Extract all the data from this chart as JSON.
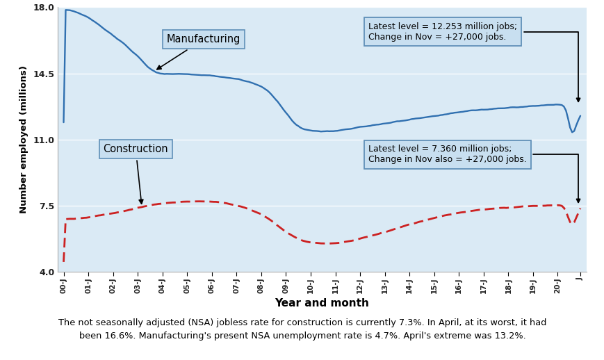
{
  "xlabel": "Year and month",
  "ylabel": "Number employed (millions)",
  "ylim": [
    4.0,
    18.0
  ],
  "yticks": [
    4.0,
    7.5,
    11.0,
    14.5,
    18.0
  ],
  "plot_bg": "#daeaf5",
  "footer_bg": "#fcdcba",
  "footer_border": "#d4a070",
  "footer_text_line1": "The not seasonally adjusted (NSA) jobless rate for construction is currently 7.3%. In April, at its worst, it had",
  "footer_text_line2": "been 16.6%. Manufacturing's present NSA unemployment rate is 4.7%. April's extreme was 13.2%.",
  "mfg_annotation": "Latest level = 12.253 million jobs;\nChange in Nov = +27,000 jobs.",
  "con_annotation": "Latest level = 7.360 million jobs;\nChange in Nov also = +27,000 jobs.",
  "mfg_label": "Manufacturing",
  "con_label": "Construction",
  "mfg_color": "#3070b0",
  "con_color": "#cc2222",
  "annotation_bg": "#c8dff0",
  "annotation_border": "#6090b8",
  "x_tick_labels": [
    "00-J",
    "01-J",
    "02-J",
    "03-J",
    "04-J",
    "05-J",
    "06-J",
    "07-J",
    "08-J",
    "09-J",
    "10-J",
    "11-J",
    "12-J",
    "13-J",
    "14-J",
    "15-J",
    "16-J",
    "17-J",
    "18-J",
    "19-J",
    "20-J",
    "J"
  ],
  "mfg_keypoints": [
    [
      0,
      17.85
    ],
    [
      3,
      17.82
    ],
    [
      6,
      17.75
    ],
    [
      9,
      17.6
    ],
    [
      12,
      17.45
    ],
    [
      18,
      17.0
    ],
    [
      24,
      16.5
    ],
    [
      30,
      16.0
    ],
    [
      36,
      15.4
    ],
    [
      40,
      14.95
    ],
    [
      42,
      14.75
    ],
    [
      44,
      14.6
    ],
    [
      46,
      14.52
    ],
    [
      48,
      14.48
    ],
    [
      54,
      14.47
    ],
    [
      60,
      14.47
    ],
    [
      66,
      14.42
    ],
    [
      72,
      14.38
    ],
    [
      78,
      14.3
    ],
    [
      84,
      14.2
    ],
    [
      90,
      14.05
    ],
    [
      96,
      13.8
    ],
    [
      100,
      13.5
    ],
    [
      104,
      13.0
    ],
    [
      108,
      12.4
    ],
    [
      112,
      11.85
    ],
    [
      116,
      11.55
    ],
    [
      120,
      11.47
    ],
    [
      126,
      11.42
    ],
    [
      132,
      11.45
    ],
    [
      138,
      11.55
    ],
    [
      144,
      11.65
    ],
    [
      150,
      11.75
    ],
    [
      156,
      11.85
    ],
    [
      162,
      11.95
    ],
    [
      168,
      12.05
    ],
    [
      174,
      12.15
    ],
    [
      180,
      12.25
    ],
    [
      186,
      12.35
    ],
    [
      192,
      12.45
    ],
    [
      198,
      12.52
    ],
    [
      204,
      12.58
    ],
    [
      210,
      12.63
    ],
    [
      216,
      12.68
    ],
    [
      222,
      12.72
    ],
    [
      228,
      12.78
    ],
    [
      234,
      12.82
    ],
    [
      238,
      12.84
    ],
    [
      240,
      12.85
    ],
    [
      242,
      12.83
    ],
    [
      243,
      12.8
    ],
    [
      244,
      12.6
    ],
    [
      245,
      12.2
    ],
    [
      246,
      11.55
    ],
    [
      247,
      11.15
    ],
    [
      248,
      11.45
    ],
    [
      249,
      11.75
    ],
    [
      250,
      12.05
    ],
    [
      251,
      12.253
    ]
  ],
  "con_keypoints": [
    [
      0,
      6.78
    ],
    [
      6,
      6.82
    ],
    [
      12,
      6.88
    ],
    [
      18,
      7.0
    ],
    [
      24,
      7.1
    ],
    [
      30,
      7.22
    ],
    [
      36,
      7.38
    ],
    [
      42,
      7.52
    ],
    [
      48,
      7.62
    ],
    [
      54,
      7.68
    ],
    [
      60,
      7.72
    ],
    [
      66,
      7.73
    ],
    [
      72,
      7.72
    ],
    [
      78,
      7.65
    ],
    [
      84,
      7.52
    ],
    [
      90,
      7.32
    ],
    [
      96,
      7.05
    ],
    [
      100,
      6.78
    ],
    [
      104,
      6.45
    ],
    [
      108,
      6.1
    ],
    [
      112,
      5.85
    ],
    [
      116,
      5.65
    ],
    [
      120,
      5.55
    ],
    [
      126,
      5.5
    ],
    [
      132,
      5.52
    ],
    [
      138,
      5.6
    ],
    [
      144,
      5.75
    ],
    [
      150,
      5.92
    ],
    [
      156,
      6.1
    ],
    [
      162,
      6.3
    ],
    [
      168,
      6.5
    ],
    [
      174,
      6.68
    ],
    [
      180,
      6.85
    ],
    [
      186,
      7.0
    ],
    [
      192,
      7.12
    ],
    [
      198,
      7.22
    ],
    [
      204,
      7.3
    ],
    [
      210,
      7.36
    ],
    [
      216,
      7.4
    ],
    [
      222,
      7.44
    ],
    [
      228,
      7.48
    ],
    [
      234,
      7.5
    ],
    [
      238,
      7.52
    ],
    [
      240,
      7.53
    ],
    [
      242,
      7.5
    ],
    [
      243,
      7.45
    ],
    [
      244,
      7.2
    ],
    [
      245,
      6.95
    ],
    [
      246,
      6.55
    ],
    [
      247,
      6.4
    ],
    [
      248,
      6.6
    ],
    [
      249,
      6.85
    ],
    [
      250,
      7.15
    ],
    [
      251,
      7.36
    ]
  ]
}
